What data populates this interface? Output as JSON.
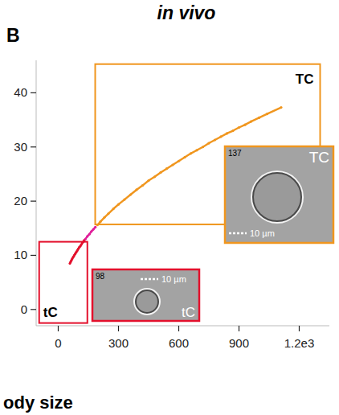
{
  "chart_data": {
    "type": "scatter",
    "title": "in vivo",
    "panel_label": "B",
    "xlim": [
      -110,
      1350
    ],
    "ylim": [
      -3,
      46
    ],
    "xticks": [
      0,
      300,
      600,
      900,
      {
        "value": 1200,
        "label": "1.2e3"
      }
    ],
    "yticks": [
      0,
      10,
      20,
      30,
      40
    ],
    "grid": false,
    "line_style": "solid",
    "marker": "dot",
    "series": [
      {
        "color": "#e3102c",
        "x": [
          58,
          62,
          66,
          70,
          75,
          80,
          85,
          90,
          95,
          100,
          105,
          110,
          115,
          120,
          125,
          130
        ],
        "values": [
          8.5,
          8.8,
          9.1,
          9.4,
          9.7,
          10.0,
          10.3,
          10.6,
          10.9,
          11.2,
          11.5,
          11.7,
          12.0,
          12.3,
          12.5,
          12.8
        ]
      },
      {
        "color": "#e0209a",
        "x": [
          135,
          145,
          155,
          165,
          175,
          185
        ],
        "values": [
          13.0,
          13.5,
          13.9,
          14.4,
          14.8,
          15.2
        ]
      },
      {
        "color": "#f0961e",
        "x": [
          195,
          210,
          230,
          250,
          275,
          300,
          330,
          360,
          390,
          420,
          450,
          480,
          510,
          540,
          570,
          600,
          630,
          660,
          690,
          720,
          750,
          780,
          810,
          840,
          870,
          900,
          930,
          960,
          1000,
          1040,
          1110
        ],
        "values": [
          15.6,
          16.2,
          17.0,
          17.7,
          18.6,
          19.4,
          20.3,
          21.2,
          22.1,
          22.9,
          23.8,
          24.5,
          25.3,
          26.0,
          26.7,
          27.4,
          28.1,
          28.8,
          29.4,
          30.0,
          30.7,
          31.3,
          31.9,
          32.5,
          33.0,
          33.6,
          34.1,
          34.7,
          35.4,
          36.1,
          37.3
        ]
      }
    ],
    "regions": [
      {
        "label": "tC",
        "color": "#e3102c",
        "x": [
          -95,
          145
        ],
        "y": [
          -2.5,
          12.5
        ]
      },
      {
        "label": "TC",
        "color": "#f0961e",
        "x": [
          184,
          1304
        ],
        "y": [
          15.7,
          45.3
        ]
      }
    ],
    "insets": [
      {
        "frame": "98",
        "scale_bar": "10 µm",
        "label": "tC",
        "color": "#e3102c"
      },
      {
        "frame": "137",
        "scale_bar": "10 µm",
        "label": "TC",
        "color": "#f0961e"
      }
    ]
  },
  "footer": "ody size"
}
